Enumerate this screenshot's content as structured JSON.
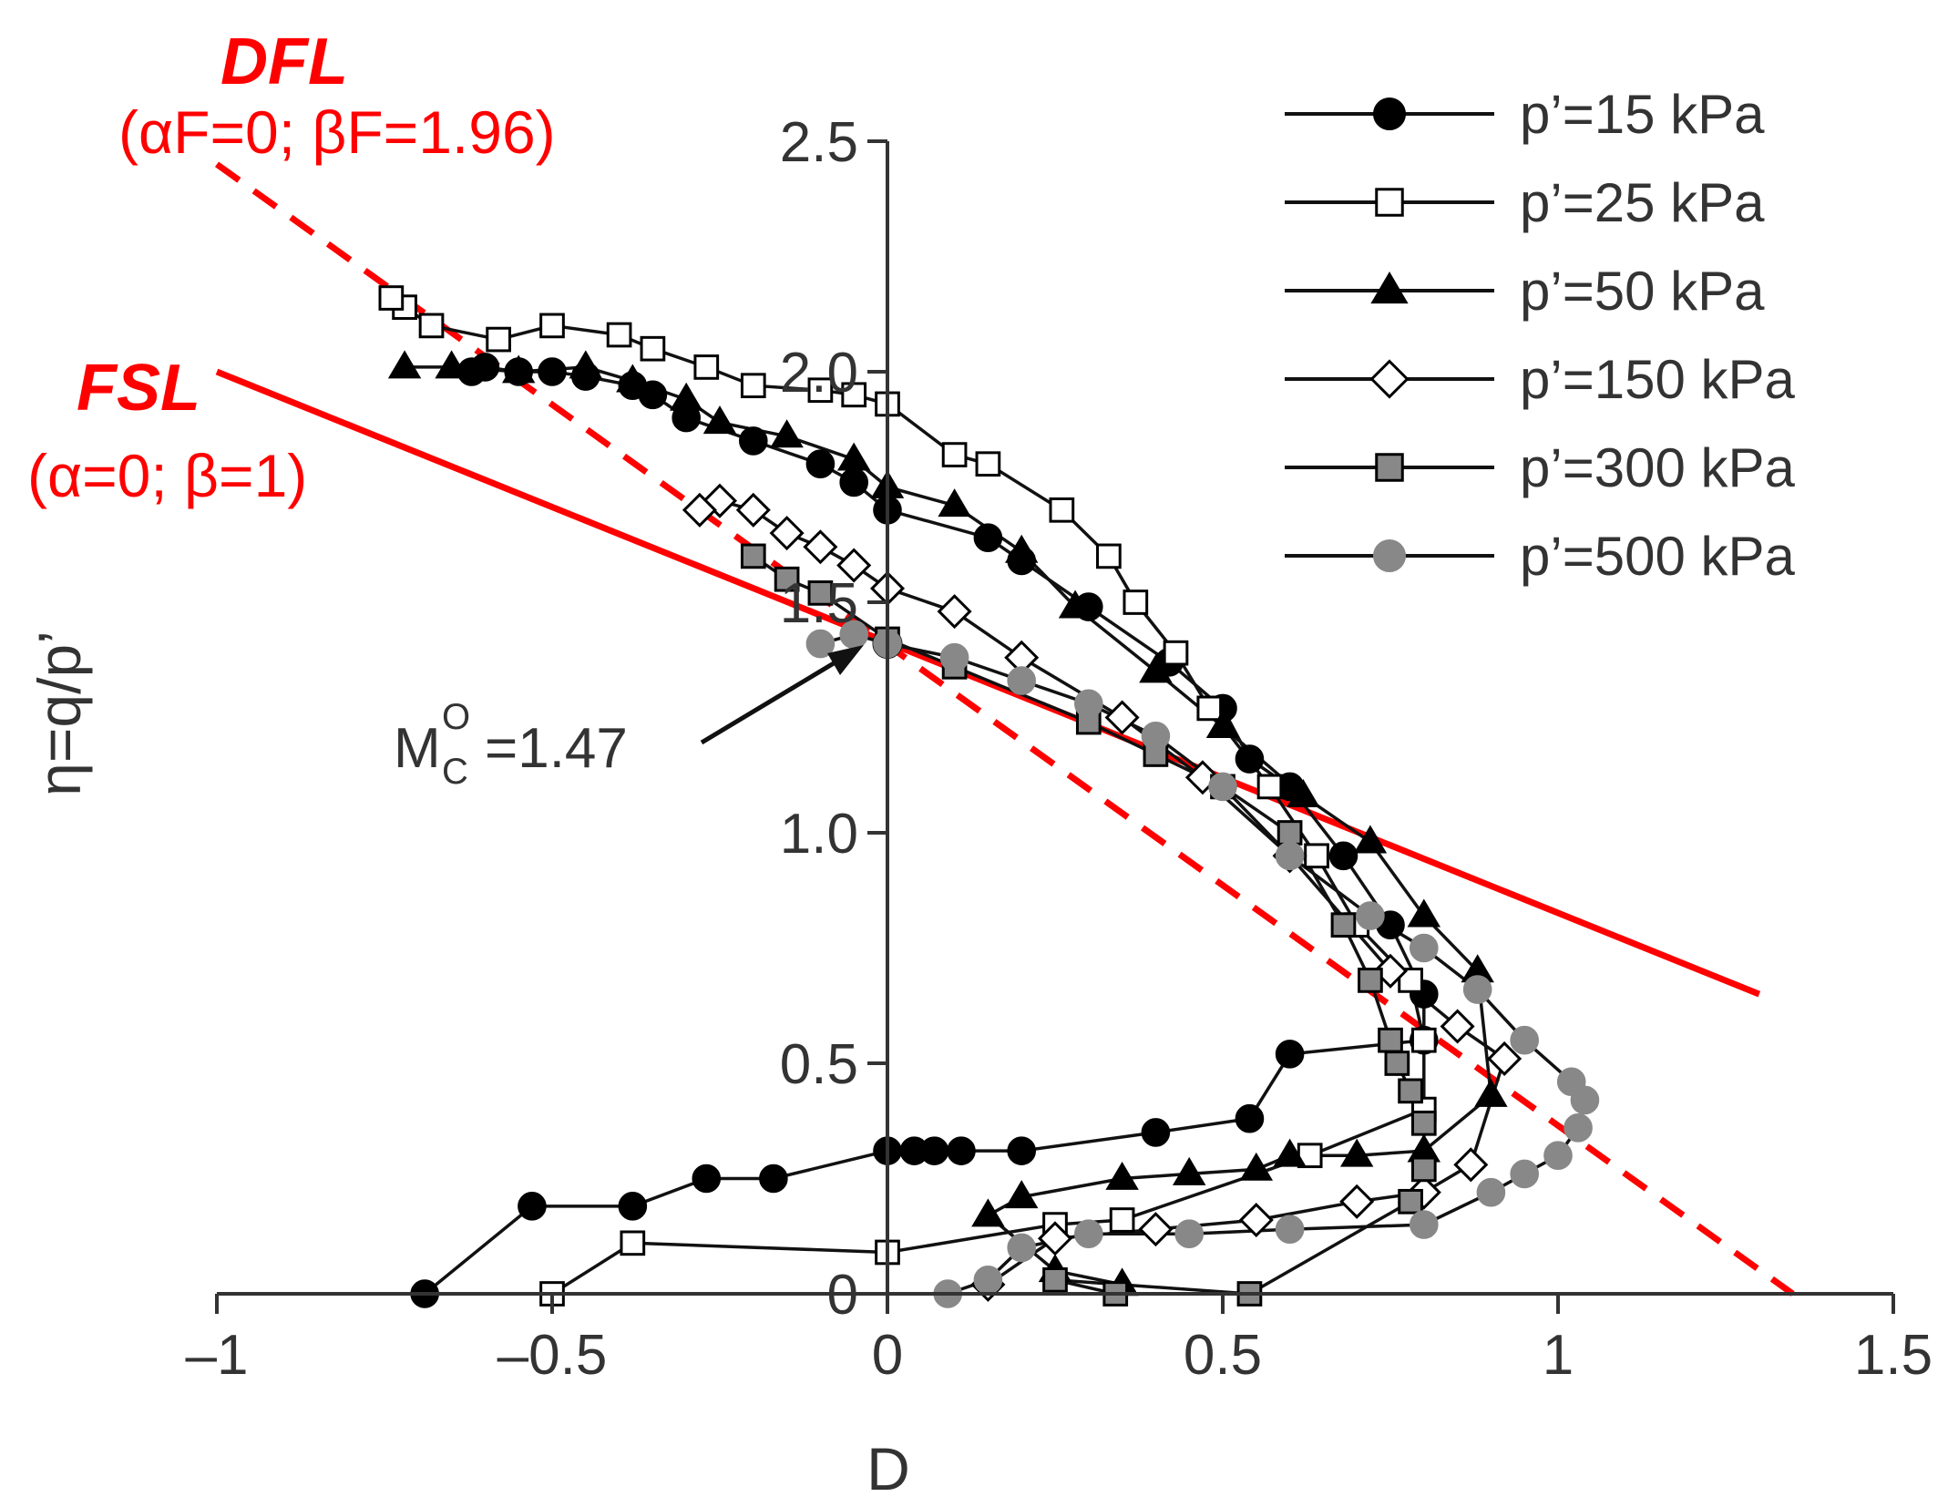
{
  "chart_data": {
    "type": "scatter",
    "xlabel": "D",
    "ylabel": "η=q/p’",
    "xlim": [
      -1,
      1.5
    ],
    "ylim": [
      0,
      2.5
    ],
    "x_ticks": [
      -1,
      -0.5,
      0,
      0.5,
      1,
      1.5
    ],
    "x_tick_labels": [
      "–1",
      "–0.5",
      "0",
      "0.5",
      "1",
      "1.5"
    ],
    "y_ticks": [
      0,
      0.5,
      1.0,
      1.5,
      2.0,
      2.5
    ],
    "y_tick_labels": [
      "0",
      "0.5",
      "1.0",
      "1.5",
      "2.0",
      "2.5"
    ],
    "grid": false,
    "legend_position": "top-right",
    "lines": [
      {
        "name": "DFL",
        "params": "(αF=0; βF=1.96)",
        "style": "dashed",
        "color": "#ff0000",
        "points": [
          [
            -1,
            2.45
          ],
          [
            1.35,
            0.0
          ]
        ]
      },
      {
        "name": "FSL",
        "params": "(α=0; β=1)",
        "style": "solid",
        "color": "#ff0000",
        "points": [
          [
            -1,
            2.0
          ],
          [
            1.3,
            0.65
          ]
        ]
      }
    ],
    "annotations": [
      {
        "label": "M",
        "sup": "O",
        "sub": "C",
        "value": "=1.47",
        "point": [
          0,
          1.41
        ]
      }
    ],
    "series": [
      {
        "name": "p’=15 kPa",
        "marker": "circle",
        "fill": "#000000",
        "stroke": "#000000",
        "points": [
          [
            -0.69,
            0.0
          ],
          [
            -0.53,
            0.19
          ],
          [
            -0.38,
            0.19
          ],
          [
            -0.27,
            0.25
          ],
          [
            -0.17,
            0.25
          ],
          [
            0.0,
            0.31
          ],
          [
            0.04,
            0.31
          ],
          [
            0.07,
            0.31
          ],
          [
            0.11,
            0.31
          ],
          [
            0.2,
            0.31
          ],
          [
            0.4,
            0.35
          ],
          [
            0.54,
            0.38
          ],
          [
            0.6,
            0.52
          ],
          [
            0.8,
            0.55
          ],
          [
            0.8,
            0.65
          ],
          [
            0.75,
            0.8
          ],
          [
            0.68,
            0.95
          ],
          [
            0.6,
            1.1
          ],
          [
            0.54,
            1.16
          ],
          [
            0.5,
            1.27
          ],
          [
            0.42,
            1.37
          ],
          [
            0.3,
            1.49
          ],
          [
            0.2,
            1.59
          ],
          [
            0.15,
            1.64
          ],
          [
            0.0,
            1.7
          ],
          [
            -0.05,
            1.76
          ],
          [
            -0.1,
            1.8
          ],
          [
            -0.2,
            1.85
          ],
          [
            -0.3,
            1.9
          ],
          [
            -0.35,
            1.95
          ],
          [
            -0.38,
            1.97
          ],
          [
            -0.45,
            1.99
          ],
          [
            -0.5,
            2.0
          ],
          [
            -0.55,
            2.0
          ],
          [
            -0.6,
            2.01
          ],
          [
            -0.62,
            2.0
          ]
        ]
      },
      {
        "name": "p’=25 kPa",
        "marker": "square",
        "fill": "#ffffff",
        "stroke": "#000000",
        "points": [
          [
            -0.5,
            0.0
          ],
          [
            -0.38,
            0.11
          ],
          [
            0.0,
            0.09
          ],
          [
            0.25,
            0.15
          ],
          [
            0.35,
            0.16
          ],
          [
            0.63,
            0.3
          ],
          [
            0.8,
            0.4
          ],
          [
            0.8,
            0.55
          ],
          [
            0.78,
            0.68
          ],
          [
            0.7,
            0.8
          ],
          [
            0.64,
            0.95
          ],
          [
            0.57,
            1.1
          ],
          [
            0.48,
            1.27
          ],
          [
            0.43,
            1.39
          ],
          [
            0.37,
            1.5
          ],
          [
            0.33,
            1.6
          ],
          [
            0.26,
            1.7
          ],
          [
            0.15,
            1.8
          ],
          [
            0.1,
            1.82
          ],
          [
            0.0,
            1.93
          ],
          [
            -0.05,
            1.95
          ],
          [
            -0.1,
            1.96
          ],
          [
            -0.2,
            1.97
          ],
          [
            -0.27,
            2.01
          ],
          [
            -0.35,
            2.05
          ],
          [
            -0.4,
            2.08
          ],
          [
            -0.5,
            2.1
          ],
          [
            -0.58,
            2.07
          ],
          [
            -0.68,
            2.1
          ],
          [
            -0.72,
            2.14
          ],
          [
            -0.74,
            2.16
          ]
        ]
      },
      {
        "name": "p’=50 kPa",
        "marker": "triangle",
        "fill": "#000000",
        "stroke": "#000000",
        "points": [
          [
            0.35,
            0.02
          ],
          [
            0.25,
            0.05
          ],
          [
            0.15,
            0.17
          ],
          [
            0.2,
            0.21
          ],
          [
            0.35,
            0.25
          ],
          [
            0.45,
            0.26
          ],
          [
            0.55,
            0.27
          ],
          [
            0.6,
            0.3
          ],
          [
            0.7,
            0.3
          ],
          [
            0.8,
            0.31
          ],
          [
            0.9,
            0.43
          ],
          [
            0.88,
            0.7
          ],
          [
            0.8,
            0.82
          ],
          [
            0.72,
            0.98
          ],
          [
            0.62,
            1.08
          ],
          [
            0.5,
            1.23
          ],
          [
            0.4,
            1.35
          ],
          [
            0.28,
            1.49
          ],
          [
            0.2,
            1.61
          ],
          [
            0.1,
            1.71
          ],
          [
            0.0,
            1.75
          ],
          [
            -0.05,
            1.81
          ],
          [
            -0.15,
            1.86
          ],
          [
            -0.25,
            1.89
          ],
          [
            -0.3,
            1.94
          ],
          [
            -0.38,
            1.98
          ],
          [
            -0.45,
            2.01
          ],
          [
            -0.55,
            2.0
          ],
          [
            -0.65,
            2.01
          ],
          [
            -0.72,
            2.01
          ]
        ]
      },
      {
        "name": "p’=150 kPa",
        "marker": "diamond",
        "fill": "#ffffff",
        "stroke": "#000000",
        "points": [
          [
            0.15,
            0.02
          ],
          [
            0.25,
            0.12
          ],
          [
            0.4,
            0.14
          ],
          [
            0.55,
            0.16
          ],
          [
            0.7,
            0.2
          ],
          [
            0.8,
            0.22
          ],
          [
            0.87,
            0.28
          ],
          [
            0.92,
            0.51
          ],
          [
            0.85,
            0.58
          ],
          [
            0.75,
            0.7
          ],
          [
            0.6,
            0.95
          ],
          [
            0.47,
            1.12
          ],
          [
            0.35,
            1.25
          ],
          [
            0.2,
            1.38
          ],
          [
            0.1,
            1.48
          ],
          [
            0.0,
            1.53
          ],
          [
            -0.05,
            1.58
          ],
          [
            -0.1,
            1.62
          ],
          [
            -0.15,
            1.65
          ],
          [
            -0.2,
            1.7
          ],
          [
            -0.25,
            1.72
          ],
          [
            -0.28,
            1.7
          ]
        ]
      },
      {
        "name": "p’=300 kPa",
        "marker": "square",
        "fill": "#888888",
        "stroke": "#000000",
        "points": [
          [
            0.34,
            0.0
          ],
          [
            0.25,
            0.03
          ],
          [
            0.54,
            0.0
          ],
          [
            0.78,
            0.2
          ],
          [
            0.8,
            0.27
          ],
          [
            0.8,
            0.37
          ],
          [
            0.78,
            0.44
          ],
          [
            0.76,
            0.5
          ],
          [
            0.75,
            0.55
          ],
          [
            0.72,
            0.68
          ],
          [
            0.68,
            0.8
          ],
          [
            0.6,
            1.0
          ],
          [
            0.5,
            1.1
          ],
          [
            0.4,
            1.17
          ],
          [
            0.3,
            1.24
          ],
          [
            0.1,
            1.36
          ],
          [
            0.0,
            1.42
          ],
          [
            -0.1,
            1.52
          ],
          [
            -0.15,
            1.55
          ],
          [
            -0.2,
            1.6
          ]
        ]
      },
      {
        "name": "p’=500 kPa",
        "marker": "circle",
        "fill": "#888888",
        "stroke": "#888888",
        "points": [
          [
            0.09,
            0.0
          ],
          [
            0.15,
            0.03
          ],
          [
            0.2,
            0.1
          ],
          [
            0.3,
            0.13
          ],
          [
            0.45,
            0.13
          ],
          [
            0.6,
            0.14
          ],
          [
            0.8,
            0.15
          ],
          [
            0.9,
            0.22
          ],
          [
            0.95,
            0.26
          ],
          [
            1.0,
            0.3
          ],
          [
            1.03,
            0.36
          ],
          [
            1.04,
            0.42
          ],
          [
            1.02,
            0.46
          ],
          [
            0.95,
            0.55
          ],
          [
            0.88,
            0.66
          ],
          [
            0.8,
            0.75
          ],
          [
            0.72,
            0.82
          ],
          [
            0.6,
            0.95
          ],
          [
            0.5,
            1.1
          ],
          [
            0.4,
            1.21
          ],
          [
            0.3,
            1.28
          ],
          [
            0.2,
            1.33
          ],
          [
            0.1,
            1.38
          ],
          [
            0.0,
            1.41
          ],
          [
            -0.05,
            1.43
          ],
          [
            -0.1,
            1.41
          ]
        ]
      }
    ]
  }
}
